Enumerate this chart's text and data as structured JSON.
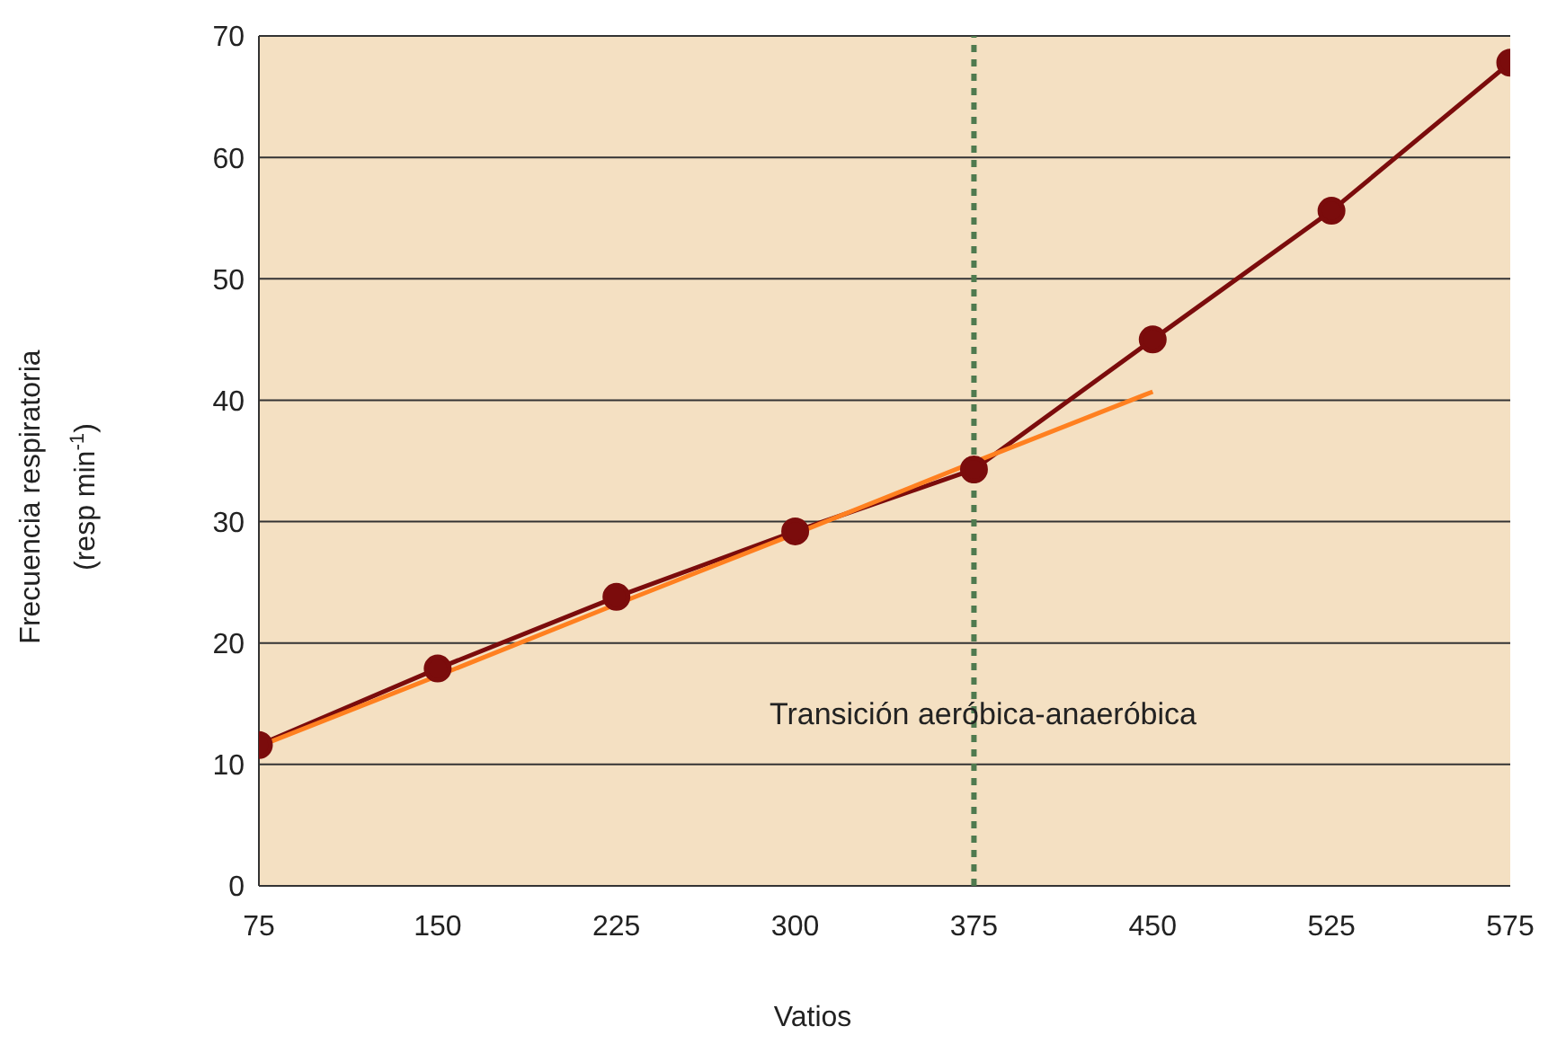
{
  "chart_data": {
    "type": "line",
    "xlabel": "Vatios",
    "ylabel": "Frecuencia respiratoria\n(resp min$^{-1}$)",
    "categories": [
      "75",
      "150",
      "225",
      "300",
      "375",
      "450",
      "525",
      "575"
    ],
    "series": [
      {
        "color": "#7b0c0c",
        "marker": "circle",
        "values": [
          11.6,
          17.9,
          23.8,
          29.2,
          34.3,
          45.0,
          55.6,
          67.8
        ]
      },
      {
        "color": "#ff8020",
        "marker": "none",
        "values": [
          11.5,
          17.3,
          23.2,
          29.0,
          34.9,
          40.7,
          null,
          null
        ]
      }
    ],
    "ylim": [
      0,
      70
    ],
    "yticks": [
      0,
      10,
      20,
      30,
      40,
      50,
      60,
      70
    ],
    "grid": "y",
    "legend": false,
    "ref_lines": [
      {
        "axis": "x",
        "value": "375",
        "label": "Transición aeróbica-anaeróbica",
        "color": "#4f7a4f",
        "line_style": "dashed"
      }
    ]
  }
}
